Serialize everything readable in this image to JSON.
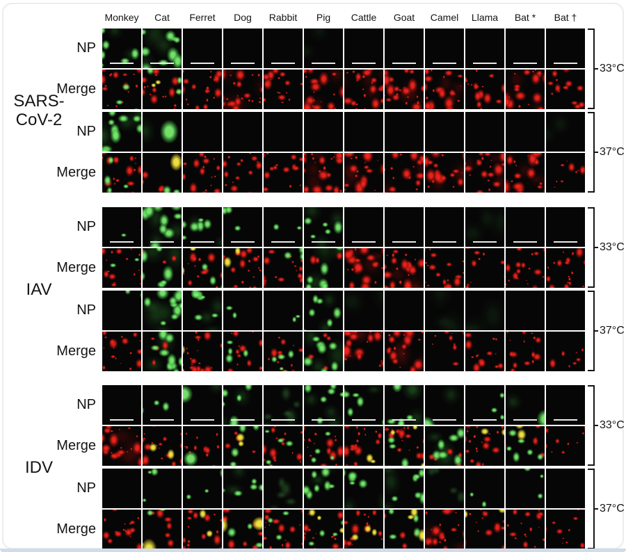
{
  "figure": {
    "columns": [
      "Monkey",
      "Cat",
      "Ferret",
      "Dog",
      "Rabbit",
      "Pig",
      "Cattle",
      "Goat",
      "Camel",
      "Llama",
      "Bat *",
      "Bat †"
    ],
    "temps": [
      "33°C",
      "37°C"
    ],
    "row_label_np": "NP",
    "row_label_merge": "Merge",
    "colors": {
      "green_signal": "#6ee06a",
      "red_signal": "#e3211a",
      "yellow_overlap": "#f0e43c",
      "micrograph_background": "#060606",
      "scale_bar": "#f6f6f6",
      "text": "#141414",
      "card_border": "#ececec",
      "bottom_strip": "#d2dbe9"
    },
    "pattern_key": {
      "k": "no signal (black)",
      "kf": "very faint green haze",
      "gf": "faint green cells",
      "g1": "few small green cells",
      "g2": "moderate green cells",
      "g3": "abundant bright green cells",
      "gL": "large bright green cell(s)",
      "r1": "sparse red signal",
      "r2": "moderate red signal",
      "r3": "dense red signal",
      "rg": "red field with scattered green cells",
      "gr": "green-dominant cells over red patches",
      "ry": "red field with yellow foci",
      "gy": "green and yellow cells over red",
      "rgy": "red field with green and yellow cells",
      "rGL": "single large green cell over red speckles",
      "gyL": "large yellow cell(s) over red field"
    },
    "panels": [
      {
        "label": "SARS-CoV-2",
        "label_lines": [
          "SARS-",
          "CoV-2"
        ],
        "rows": [
          {
            "label": "NP",
            "temp": "33°C",
            "scale_bar": true,
            "cells": [
              "g2",
              "g3",
              "k",
              "k",
              "k",
              "kf",
              "k",
              "k",
              "k",
              "k",
              "k",
              "k"
            ]
          },
          {
            "label": "Merge",
            "temp": "33°C",
            "scale_bar": false,
            "cells": [
              "rg",
              "rgy",
              "r2",
              "r3",
              "r2",
              "r3",
              "r3",
              "r3",
              "r3",
              "r2",
              "r3",
              "r2"
            ]
          },
          {
            "label": "NP",
            "temp": "37°C",
            "scale_bar": false,
            "cells": [
              "g3",
              "gL",
              "k",
              "k",
              "k",
              "k",
              "k",
              "k",
              "k",
              "k",
              "k",
              "kf"
            ]
          },
          {
            "label": "Merge",
            "temp": "37°C",
            "scale_bar": false,
            "cells": [
              "rg",
              "gyL",
              "r2",
              "r2",
              "r2",
              "r3",
              "r3",
              "r3",
              "r3",
              "r3",
              "r3",
              "r1"
            ]
          }
        ]
      },
      {
        "label": "IAV",
        "label_lines": [
          "IAV"
        ],
        "rows": [
          {
            "label": "NP",
            "temp": "33°C",
            "scale_bar": true,
            "cells": [
              "g1",
              "g3",
              "g2",
              "g1",
              "g1",
              "g2",
              "k",
              "k",
              "k",
              "kf",
              "k",
              "k"
            ]
          },
          {
            "label": "Merge",
            "temp": "33°C",
            "scale_bar": false,
            "cells": [
              "rg",
              "gr",
              "rgy",
              "ry",
              "rg",
              "gr",
              "r3",
              "r3",
              "r2",
              "r1",
              "r2",
              "r2"
            ]
          },
          {
            "label": "NP",
            "temp": "37°C",
            "scale_bar": false,
            "cells": [
              "g1",
              "g3",
              "g2",
              "g1",
              "g1",
              "g2",
              "kf",
              "k",
              "kf",
              "kf",
              "k",
              "k"
            ]
          },
          {
            "label": "Merge",
            "temp": "37°C",
            "scale_bar": false,
            "cells": [
              "r2",
              "gr",
              "ry",
              "rg",
              "rg",
              "gr",
              "r3",
              "r3",
              "r1",
              "r2",
              "r2",
              "r1"
            ]
          }
        ]
      },
      {
        "label": "IDV",
        "label_lines": [
          "IDV"
        ],
        "rows": [
          {
            "label": "NP",
            "temp": "33°C",
            "scale_bar": true,
            "cells": [
              "k",
              "g1",
              "gL",
              "g2",
              "gf",
              "g2",
              "g2",
              "g2",
              "gL",
              "g1",
              "gL",
              "k"
            ]
          },
          {
            "label": "Merge",
            "temp": "33°C",
            "scale_bar": false,
            "cells": [
              "r3",
              "ry",
              "rGL",
              "gy",
              "rg",
              "rg",
              "ry",
              "rgy",
              "gr",
              "ry",
              "gy",
              "r1"
            ]
          },
          {
            "label": "NP",
            "temp": "37°C",
            "scale_bar": false,
            "cells": [
              "k",
              "g1",
              "g1",
              "g2",
              "gf",
              "g2",
              "g2",
              "g2",
              "gf",
              "g1",
              "g1",
              "k"
            ]
          },
          {
            "label": "Merge",
            "temp": "37°C",
            "scale_bar": false,
            "cells": [
              "r2",
              "gyL",
              "ry",
              "gyL",
              "rg",
              "rgy",
              "ry",
              "gy",
              "r3",
              "ry",
              "r2",
              "r1"
            ]
          }
        ]
      }
    ]
  }
}
